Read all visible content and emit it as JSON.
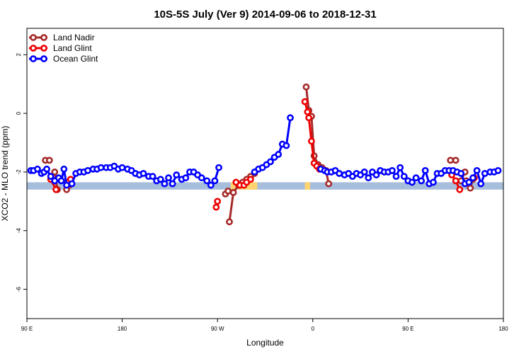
{
  "chart_data": {
    "type": "line",
    "title": "10S-5S July (Ver 9)   2014-09-06 to 2018-12-31",
    "xlabel": "Longitude",
    "ylabel": "XCO2 - MLO trend (ppm)",
    "xlim": [
      90,
      450
    ],
    "ylim": [
      -7,
      2.9
    ],
    "x_ticks": [
      {
        "value": 90,
        "label": "90 E"
      },
      {
        "value": 162,
        "label": "180"
      },
      {
        "value": 234,
        "label": "90 W"
      },
      {
        "value": 306,
        "label": "0"
      },
      {
        "value": 378,
        "label": "90 E"
      },
      {
        "value": 450,
        "label": "180"
      }
    ],
    "y_ticks": [
      {
        "value": -6,
        "label": "-6"
      },
      {
        "value": -4,
        "label": "-4"
      },
      {
        "value": -2,
        "label": "-2"
      },
      {
        "value": 0,
        "label": "0"
      },
      {
        "value": 2,
        "label": "2"
      }
    ],
    "legend_position": "top-left",
    "grid": false,
    "bands": {
      "y_range": [
        -2.6,
        -2.35
      ],
      "color": "#a6bddb",
      "segments": [
        {
          "x": [
            90,
            450
          ],
          "color": "#a6bddb"
        },
        {
          "x": [
            244,
            264
          ],
          "color": "#ffd36e"
        },
        {
          "x": [
            300,
            301
          ],
          "color": "#ffd36e"
        },
        {
          "x": [
            301,
            304
          ],
          "color": "#ffd36e"
        },
        {
          "x": [
            300.5,
            301.5
          ],
          "color": "#ffd36e"
        },
        {
          "x": [
            301.5,
            303.5
          ],
          "color": "#ffd36e"
        }
      ]
    },
    "series": [
      {
        "name": "Land Nadir",
        "color": "#a52a2a",
        "segments": [
          [
            [
              104,
              -1.6
            ],
            [
              107,
              -1.6
            ]
          ],
          [
            [
              111,
              -2.0
            ],
            [
              113,
              -2.6
            ]
          ],
          [
            [
              120,
              -2.6
            ],
            [
              122,
              -2.45
            ]
          ],
          [
            [
              240,
              -2.75
            ],
            [
              242,
              -2.65
            ]
          ],
          [
            [
              243,
              -3.7
            ],
            [
              246,
              -2.7
            ],
            [
              250,
              -2.45
            ],
            [
              253,
              -2.35
            ],
            [
              256,
              -2.25
            ],
            [
              259,
              -2.15
            ],
            [
              262,
              -2.05
            ]
          ],
          [
            [
              301,
              0.9
            ],
            [
              303,
              0.1
            ],
            [
              305,
              -0.1
            ],
            [
              307,
              -1.45
            ],
            [
              310,
              -1.75
            ],
            [
              313,
              -1.85
            ],
            [
              316,
              -1.95
            ],
            [
              318,
              -2.4
            ]
          ],
          [
            [
              410,
              -1.6
            ],
            [
              414,
              -1.6
            ]
          ],
          [
            [
              418,
              -2.3
            ],
            [
              421,
              -2.0
            ]
          ],
          [
            [
              422,
              -2.3
            ],
            [
              425,
              -2.55
            ],
            [
              427,
              -2.25
            ]
          ]
        ]
      },
      {
        "name": "Land Glint",
        "color": "#ee0000",
        "segments": [
          [
            [
              108,
              -2.25
            ],
            [
              112,
              -2.6
            ]
          ],
          [
            [
              121,
              -2.35
            ],
            [
              123,
              -2.25
            ]
          ],
          [
            [
              233,
              -3.2
            ],
            [
              234,
              -3.0
            ]
          ],
          [
            [
              248,
              -2.35
            ],
            [
              251,
              -2.45
            ],
            [
              254,
              -2.45
            ],
            [
              256,
              -2.35
            ],
            [
              259,
              -2.25
            ]
          ],
          [
            [
              300,
              0.4
            ],
            [
              302,
              0.05
            ],
            [
              303,
              -0.15
            ],
            [
              305,
              -0.95
            ],
            [
              307,
              -1.7
            ],
            [
              309,
              -1.8
            ],
            [
              311,
              -1.9
            ]
          ],
          [
            [
              411,
              -2.1
            ],
            [
              414,
              -2.3
            ],
            [
              417,
              -2.6
            ]
          ],
          [
            [
              428,
              -2.2
            ]
          ]
        ]
      },
      {
        "name": "Ocean Glint",
        "color": "#0000ff",
        "segments": [
          [
            [
              93,
              -1.95
            ],
            [
              95,
              -1.95
            ],
            [
              98,
              -1.9
            ],
            [
              101,
              -2.05
            ],
            [
              103,
              -2.0
            ],
            [
              105,
              -1.9
            ],
            [
              108,
              -2.15
            ],
            [
              111,
              -2.3
            ],
            [
              114,
              -2.2
            ],
            [
              116,
              -2.3
            ],
            [
              118,
              -1.9
            ],
            [
              120,
              -2.45
            ],
            [
              124,
              -2.4
            ],
            [
              127,
              -2.05
            ],
            [
              130,
              -2.0
            ],
            [
              133,
              -2.0
            ],
            [
              136,
              -1.95
            ],
            [
              140,
              -1.9
            ],
            [
              143,
              -1.9
            ],
            [
              146,
              -1.85
            ],
            [
              150,
              -1.85
            ],
            [
              153,
              -1.85
            ],
            [
              156,
              -1.8
            ],
            [
              159,
              -1.9
            ],
            [
              162,
              -1.85
            ],
            [
              166,
              -1.9
            ],
            [
              169,
              -1.95
            ],
            [
              172,
              -2.05
            ],
            [
              175,
              -2.1
            ],
            [
              178,
              -2.05
            ],
            [
              182,
              -2.15
            ],
            [
              185,
              -2.15
            ],
            [
              188,
              -2.3
            ],
            [
              191,
              -2.25
            ],
            [
              194,
              -2.4
            ],
            [
              197,
              -2.2
            ],
            [
              200,
              -2.4
            ],
            [
              203,
              -2.1
            ],
            [
              207,
              -2.25
            ],
            [
              210,
              -2.2
            ],
            [
              213,
              -2.0
            ],
            [
              216,
              -2.0
            ],
            [
              219,
              -2.1
            ],
            [
              222,
              -2.2
            ],
            [
              226,
              -2.3
            ],
            [
              229,
              -2.45
            ],
            [
              232,
              -2.3
            ],
            [
              235,
              -1.85
            ]
          ],
          [
            [
              262,
              -2.0
            ],
            [
              265,
              -1.9
            ],
            [
              268,
              -1.85
            ],
            [
              271,
              -1.75
            ],
            [
              274,
              -1.65
            ],
            [
              277,
              -1.5
            ],
            [
              280,
              -1.4
            ],
            [
              283,
              -1.05
            ],
            [
              286,
              -1.1
            ],
            [
              289,
              -0.15
            ]
          ],
          [
            [
              312,
              -1.9
            ],
            [
              315,
              -1.95
            ],
            [
              317,
              -2.0
            ],
            [
              320,
              -2.0
            ],
            [
              323,
              -1.95
            ],
            [
              326,
              -2.05
            ],
            [
              330,
              -2.1
            ],
            [
              333,
              -2.05
            ],
            [
              336,
              -2.15
            ],
            [
              339,
              -2.05
            ],
            [
              342,
              -2.1
            ],
            [
              345,
              -2.0
            ],
            [
              348,
              -2.2
            ],
            [
              351,
              -2.0
            ],
            [
              354,
              -2.1
            ],
            [
              357,
              -1.95
            ],
            [
              360,
              -2.0
            ],
            [
              363,
              -2.0
            ],
            [
              366,
              -1.95
            ],
            [
              369,
              -2.15
            ],
            [
              372,
              -1.85
            ],
            [
              375,
              -2.15
            ],
            [
              378,
              -2.3
            ],
            [
              381,
              -2.35
            ],
            [
              384,
              -2.2
            ],
            [
              388,
              -2.3
            ],
            [
              391,
              -1.95
            ],
            [
              394,
              -2.4
            ],
            [
              397,
              -2.35
            ],
            [
              400,
              -2.05
            ],
            [
              403,
              -2.05
            ],
            [
              406,
              -1.95
            ],
            [
              409,
              -1.95
            ],
            [
              412,
              -1.95
            ],
            [
              415,
              -2.0
            ],
            [
              418,
              -2.05
            ],
            [
              421,
              -2.4
            ],
            [
              424,
              -2.35
            ],
            [
              427,
              -2.2
            ],
            [
              430,
              -1.95
            ],
            [
              433,
              -2.4
            ],
            [
              436,
              -2.05
            ],
            [
              440,
              -2.0
            ],
            [
              443,
              -2.0
            ],
            [
              446,
              -1.95
            ]
          ]
        ]
      }
    ]
  }
}
